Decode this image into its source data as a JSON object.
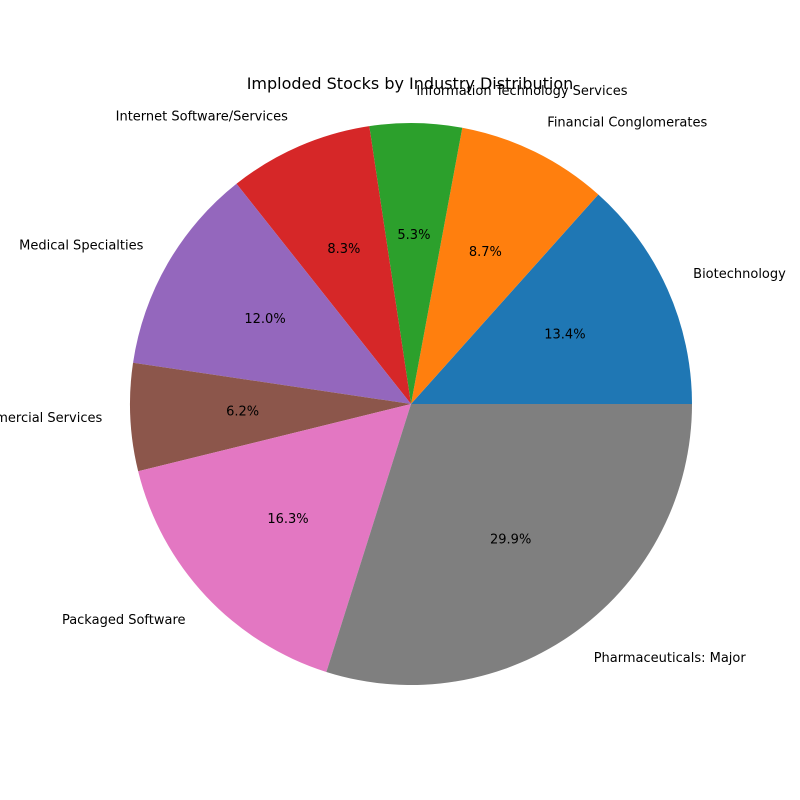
{
  "chart_data": {
    "type": "pie",
    "title": "Imploded Stocks by Industry Distribution",
    "start_angle_deg": 0,
    "direction": "counterclockwise",
    "slices": [
      {
        "label": "Biotechnology",
        "value": 13.4,
        "pct_text": "13.4%",
        "color": "#1f77b4"
      },
      {
        "label": "Financial Conglomerates",
        "value": 8.7,
        "pct_text": "8.7%",
        "color": "#ff7f0e"
      },
      {
        "label": "Information Technology Services",
        "value": 5.3,
        "pct_text": "5.3%",
        "color": "#2ca02c"
      },
      {
        "label": "Internet Software/Services",
        "value": 8.3,
        "pct_text": "8.3%",
        "color": "#d62728"
      },
      {
        "label": "Medical Specialties",
        "value": 12.0,
        "pct_text": "12.0%",
        "color": "#9467bd"
      },
      {
        "label": "Miscellaneous Commercial Services",
        "value": 6.2,
        "pct_text": "6.2%",
        "color": "#8c564b"
      },
      {
        "label": "Packaged Software",
        "value": 16.3,
        "pct_text": "16.3%",
        "color": "#e377c2"
      },
      {
        "label": "Pharmaceuticals: Major",
        "value": 29.9,
        "pct_text": "29.9%",
        "color": "#7f7f7f"
      }
    ]
  }
}
